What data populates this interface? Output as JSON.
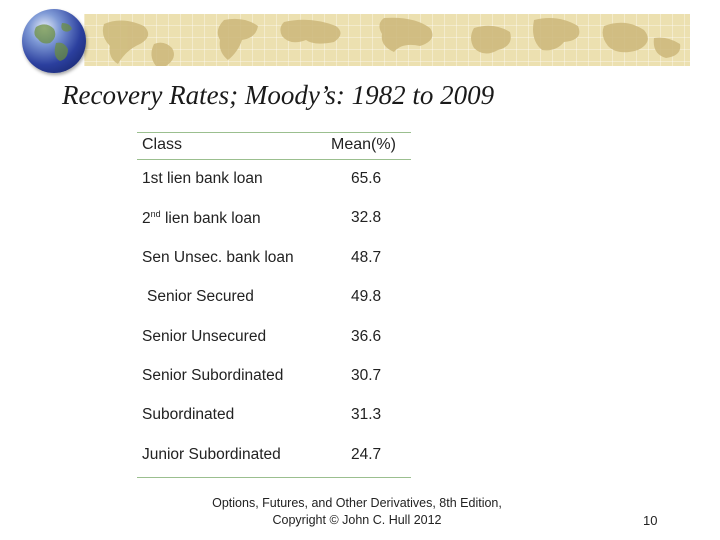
{
  "slide": {
    "title": "Recovery Rates; Moody’s: 1982 to 2009",
    "table": {
      "headers": {
        "class": "Class",
        "mean": "Mean(%)"
      },
      "rows": [
        {
          "class": "1st lien bank loan",
          "mean": "65.6"
        },
        {
          "class_prefix": "2",
          "class_sup": "nd",
          "class_suffix": " lien bank loan",
          "mean": "32.8"
        },
        {
          "class": "Sen Unsec. bank loan",
          "mean": "48.7"
        },
        {
          "class": "Senior Secured",
          "mean": "49.8"
        },
        {
          "class": "Senior Unsecured",
          "mean": "36.6"
        },
        {
          "class": "Senior Subordinated",
          "mean": "30.7"
        },
        {
          "class": "Subordinated",
          "mean": "31.3"
        },
        {
          "class": "Junior Subordinated",
          "mean": "24.7"
        }
      ]
    },
    "footer": {
      "line1": "Options, Futures, and Other Derivatives, 8th Edition,",
      "line2": "Copyright © John C. Hull 2012"
    },
    "page_number": "10"
  },
  "decor": {
    "banner_color": "#ece0b0",
    "map_color": "#cdb87a",
    "globe_color": "#2b3f9e",
    "rule_color": "#9bbf8f"
  }
}
